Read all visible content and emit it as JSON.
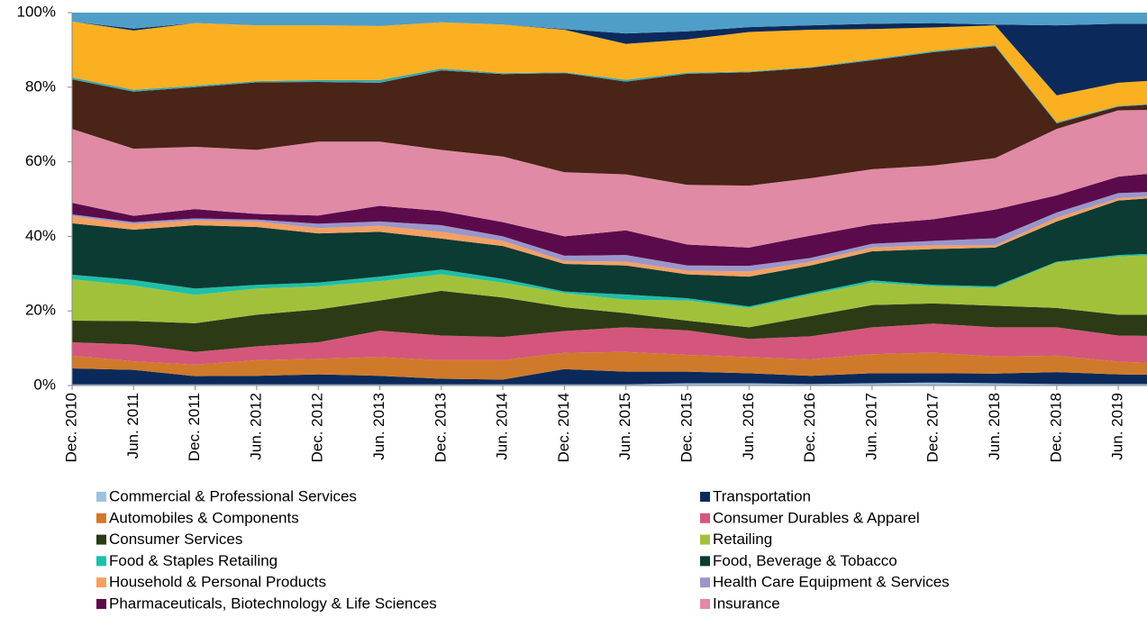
{
  "chart_data": {
    "type": "stacked_area",
    "categories": [
      "Dec. 2010",
      "Jun. 2011",
      "Dec. 2011",
      "Jun. 2012",
      "Dec. 2012",
      "Jun. 2013",
      "Dec. 2013",
      "Jun. 2014",
      "Dec. 2014",
      "Jun. 2015",
      "Dec. 2015",
      "Jun. 2016",
      "Dec. 2016",
      "Jun. 2017",
      "Dec. 2017",
      "Jun. 2018",
      "Dec. 2018",
      "Jun. 2019",
      null
    ],
    "ylim": [
      0,
      100
    ],
    "yticks": [
      {
        "value": 0,
        "label": "0%"
      },
      {
        "value": 20,
        "label": "20%"
      },
      {
        "value": 40,
        "label": "40%"
      },
      {
        "value": 60,
        "label": "60%"
      },
      {
        "value": 80,
        "label": "80%"
      },
      {
        "value": 100,
        "label": "100%"
      }
    ],
    "series": [
      {
        "name": "Commercial  & Professional Services",
        "color": "#9ec1dd",
        "values": [
          0.3,
          0.3,
          0.3,
          0.3,
          0.3,
          0.3,
          0.3,
          0.3,
          0.3,
          0.3,
          0.6,
          0.6,
          0.4,
          0.6,
          0.8,
          0.6,
          0.4,
          0.4,
          0.4
        ]
      },
      {
        "name": "Transportation",
        "color": "#0b2a5b",
        "values": [
          4.3,
          3.9,
          2.2,
          2.3,
          2.7,
          2.3,
          1.5,
          1.3,
          4.1,
          3.4,
          3.1,
          2.7,
          2.2,
          2.7,
          2.5,
          2.6,
          3.2,
          2.6,
          2.4
        ]
      },
      {
        "name": "Automobiles & Components",
        "color": "#cf7a2a",
        "values": [
          3.4,
          2.3,
          3.1,
          4.2,
          4.2,
          5,
          5,
          5.2,
          4.4,
          5.3,
          4.5,
          4.3,
          4.4,
          5.1,
          5.5,
          4.6,
          4.4,
          3.4,
          3
        ]
      },
      {
        "name": "Consumer Durables & Apparel",
        "color": "#d4567c",
        "values": [
          3.6,
          4.5,
          3.4,
          3.7,
          4.4,
          7.1,
          6.6,
          6.2,
          5.8,
          6.6,
          6.6,
          4.9,
          6.2,
          7.2,
          7.8,
          7.8,
          7.6,
          7,
          7.4
        ]
      },
      {
        "name": "Consumer Services",
        "color": "#2d3a16",
        "values": [
          5.8,
          6.3,
          7.7,
          8.5,
          8.8,
          8.1,
          12,
          10.6,
          6.4,
          3.8,
          2.6,
          3.1,
          5.4,
          6,
          5.4,
          5.8,
          5.2,
          5.6,
          5.8
        ]
      },
      {
        "name": "Retailing",
        "color": "#a2c13b",
        "values": [
          11.1,
          9.5,
          7.6,
          7,
          6.2,
          5.2,
          4.4,
          4,
          3.8,
          3.6,
          5.4,
          5.2,
          5.8,
          6,
          4.6,
          4.8,
          12.2,
          15.6,
          16.2
        ]
      },
      {
        "name": "Food & Staples Retailing",
        "color": "#1fbfa8",
        "values": [
          1.2,
          1.5,
          1.7,
          1,
          1,
          1.2,
          1.3,
          1,
          0.4,
          1.4,
          0.6,
          0.4,
          0.4,
          0.6,
          0.4,
          0.4,
          0.2,
          0.4,
          0.4
        ]
      },
      {
        "name": "Food, Beverage & Tobacco",
        "color": "#0b3b33",
        "values": [
          13.8,
          13.5,
          17,
          15.5,
          13.2,
          12,
          8.3,
          8.8,
          7.4,
          7.8,
          6.4,
          8,
          7.4,
          7.8,
          9.6,
          10.4,
          10.8,
          14.6,
          15.2
        ]
      },
      {
        "name": "Household & Personal Products",
        "color": "#f4a062",
        "values": [
          1.9,
          1.5,
          1.3,
          1.5,
          1.4,
          1.6,
          1.8,
          1.4,
          0.8,
          1,
          1,
          1.4,
          1,
          1,
          1,
          0.6,
          1,
          0.6,
          0.4
        ]
      },
      {
        "name": "Health Care Equipment & Services",
        "color": "#9b96ca",
        "values": [
          0.5,
          0.5,
          0.5,
          0.5,
          1.2,
          1.2,
          1.8,
          1.2,
          1.4,
          1.8,
          1.4,
          1.5,
          1,
          1,
          1.2,
          1.9,
          1.4,
          1.4,
          1
        ]
      },
      {
        "name": "Pharmaceuticals, Biotechnology & Life Sciences",
        "color": "#5b0b4b",
        "values": [
          3.1,
          1.7,
          2.5,
          1.5,
          2.2,
          4.2,
          3.8,
          3.8,
          5.2,
          6.6,
          5.6,
          4.9,
          6,
          5.2,
          5.8,
          7.7,
          4.6,
          4.4,
          5.4
        ]
      },
      {
        "name": "Insurance",
        "color": "#e08aa6",
        "values": [
          19.8,
          18,
          16.7,
          17.2,
          19.8,
          17.2,
          16.4,
          17.6,
          17.2,
          15,
          16,
          16.6,
          15.4,
          14.8,
          14.4,
          13.8,
          17.8,
          17.8,
          16.4
        ]
      },
      {
        "color": "#4a2416",
        "values": [
          13.3,
          15.3,
          16,
          18.1,
          16,
          15.8,
          21.3,
          22.1,
          26.6,
          24.9,
          29.8,
          30.4,
          29.6,
          29.2,
          30.4,
          30,
          1.5,
          1,
          1.8
        ]
      },
      {
        "color": "#3aa6b0",
        "values": [
          0.5,
          0.5,
          0.4,
          0.3,
          0.5,
          0.7,
          0.5,
          0.3,
          0.2,
          0.5,
          0.3,
          0.2,
          0.2,
          0.3,
          0.3,
          0.3,
          0.3,
          0.2,
          0.2
        ]
      },
      {
        "color": "#fbb022",
        "values": [
          15,
          15.9,
          16.8,
          15,
          14.7,
          14.5,
          12.4,
          13,
          11.4,
          9.6,
          8.9,
          10.6,
          10,
          8.1,
          6.3,
          5.3,
          7.2,
          6.2,
          6.2
        ]
      },
      {
        "color": "#0b2a5b",
        "values": [
          0,
          0.5,
          0,
          0,
          0,
          0,
          0,
          0,
          0.2,
          2.8,
          2.2,
          1.3,
          1.2,
          1.4,
          1.2,
          0.2,
          18.8,
          15.8,
          14.8
        ]
      },
      {
        "color": "#4f9ec9",
        "values": [
          2.4,
          4.3,
          2.8,
          3.4,
          3.4,
          3.6,
          2.6,
          3.2,
          4.4,
          5.6,
          5,
          3.9,
          3.4,
          3,
          2.8,
          3.2,
          3.4,
          3,
          3
        ]
      }
    ]
  }
}
